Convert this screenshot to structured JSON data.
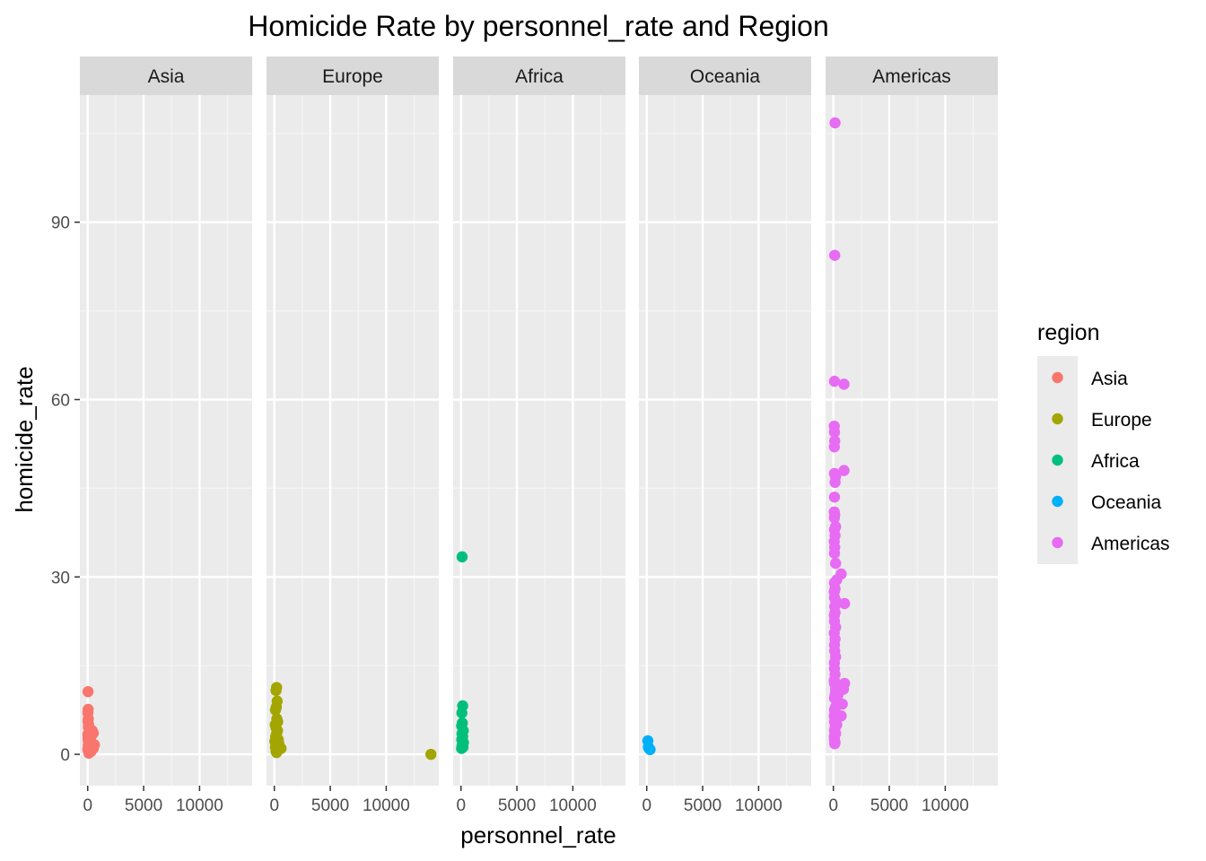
{
  "chart_data": {
    "type": "scatter",
    "title": "Homicide Rate by personnel_rate and Region",
    "xlabel": "personnel_rate",
    "ylabel": "homicide_rate",
    "xlim": [
      -700,
      14700
    ],
    "ylim": [
      -5.3,
      111.5
    ],
    "x_ticks": [
      0,
      5000,
      10000
    ],
    "x_tick_labels": [
      "0",
      "5000",
      "10000"
    ],
    "y_ticks": [
      0,
      30,
      60,
      90
    ],
    "y_tick_labels": [
      "0",
      "30",
      "60",
      "90"
    ],
    "grid": true,
    "facet_by": "region",
    "legend": {
      "title": "region",
      "position": "right"
    },
    "facets": [
      {
        "name": "Asia",
        "color": "#F8766D",
        "points": [
          [
            30,
            10.6
          ],
          [
            40,
            7.6
          ],
          [
            20,
            7.0
          ],
          [
            50,
            6.0
          ],
          [
            30,
            5.6
          ],
          [
            80,
            5.0
          ],
          [
            400,
            4.0
          ],
          [
            500,
            3.6
          ],
          [
            60,
            4.6
          ],
          [
            20,
            3.4
          ],
          [
            300,
            3.0
          ],
          [
            100,
            2.6
          ],
          [
            200,
            2.0
          ],
          [
            600,
            1.6
          ],
          [
            500,
            1.0
          ],
          [
            40,
            2.4
          ],
          [
            80,
            1.2
          ],
          [
            10,
            0.8
          ],
          [
            300,
            0.5
          ],
          [
            150,
            0.3
          ],
          [
            50,
            1.5
          ],
          [
            200,
            4.2
          ],
          [
            30,
            2.8
          ],
          [
            100,
            0.2
          ]
        ]
      },
      {
        "name": "Europe",
        "color": "#A3A500",
        "points": [
          [
            200,
            11.3
          ],
          [
            150,
            10.8
          ],
          [
            250,
            9.0
          ],
          [
            180,
            8.0
          ],
          [
            100,
            7.5
          ],
          [
            220,
            6.0
          ],
          [
            300,
            5.5
          ],
          [
            80,
            5.0
          ],
          [
            150,
            4.5
          ],
          [
            280,
            4.0
          ],
          [
            200,
            3.5
          ],
          [
            120,
            3.0
          ],
          [
            350,
            2.5
          ],
          [
            180,
            2.0
          ],
          [
            250,
            1.5
          ],
          [
            600,
            1.0
          ],
          [
            300,
            0.8
          ],
          [
            150,
            0.5
          ],
          [
            200,
            0.3
          ],
          [
            100,
            1.2
          ],
          [
            400,
            1.8
          ],
          [
            50,
            2.2
          ],
          [
            14000,
            0.0
          ]
        ]
      },
      {
        "name": "Africa",
        "color": "#00BF7D",
        "points": [
          [
            100,
            33.4
          ],
          [
            150,
            8.2
          ],
          [
            80,
            7.0
          ],
          [
            120,
            5.3
          ],
          [
            60,
            4.8
          ],
          [
            200,
            4.0
          ],
          [
            90,
            3.5
          ],
          [
            150,
            3.0
          ],
          [
            70,
            2.5
          ],
          [
            220,
            2.0
          ],
          [
            100,
            1.5
          ],
          [
            180,
            1.2
          ],
          [
            50,
            1.0
          ]
        ]
      },
      {
        "name": "Oceania",
        "color": "#00B0F6",
        "points": [
          [
            100,
            2.3
          ],
          [
            200,
            1.0
          ],
          [
            300,
            0.8
          ],
          [
            150,
            1.2
          ]
        ]
      },
      {
        "name": "Americas",
        "color": "#E76BF3",
        "points": [
          [
            150,
            106.8
          ],
          [
            120,
            84.4
          ],
          [
            100,
            63.1
          ],
          [
            950,
            62.6
          ],
          [
            80,
            55.5
          ],
          [
            100,
            54.5
          ],
          [
            120,
            53.0
          ],
          [
            90,
            52.0
          ],
          [
            950,
            48.0
          ],
          [
            100,
            47.5
          ],
          [
            200,
            47.0
          ],
          [
            150,
            46.0
          ],
          [
            100,
            43.5
          ],
          [
            80,
            41.0
          ],
          [
            120,
            40.5
          ],
          [
            90,
            40.0
          ],
          [
            200,
            38.5
          ],
          [
            100,
            38.0
          ],
          [
            150,
            37.0
          ],
          [
            80,
            36.0
          ],
          [
            120,
            35.0
          ],
          [
            100,
            34.0
          ],
          [
            200,
            32.3
          ],
          [
            700,
            30.5
          ],
          [
            300,
            29.5
          ],
          [
            100,
            29.0
          ],
          [
            150,
            28.0
          ],
          [
            80,
            27.5
          ],
          [
            100,
            26.5
          ],
          [
            200,
            26.0
          ],
          [
            1000,
            25.5
          ],
          [
            120,
            25.0
          ],
          [
            150,
            24.0
          ],
          [
            90,
            23.5
          ],
          [
            100,
            22.5
          ],
          [
            200,
            21.5
          ],
          [
            80,
            20.5
          ],
          [
            150,
            19.5
          ],
          [
            100,
            18.5
          ],
          [
            120,
            17.5
          ],
          [
            200,
            16.5
          ],
          [
            90,
            15.5
          ],
          [
            100,
            14.5
          ],
          [
            150,
            13.5
          ],
          [
            80,
            12.5
          ],
          [
            100,
            12.0
          ],
          [
            1000,
            12.0
          ],
          [
            900,
            11.0
          ],
          [
            200,
            11.0
          ],
          [
            150,
            10.0
          ],
          [
            100,
            9.5
          ],
          [
            300,
            9.0
          ],
          [
            200,
            8.0
          ],
          [
            800,
            8.5
          ],
          [
            100,
            7.5
          ],
          [
            150,
            7.0
          ],
          [
            80,
            6.5
          ],
          [
            700,
            6.5
          ],
          [
            200,
            6.0
          ],
          [
            100,
            5.5
          ],
          [
            300,
            5.0
          ],
          [
            150,
            4.5
          ],
          [
            100,
            4.0
          ],
          [
            200,
            3.5
          ],
          [
            80,
            3.0
          ],
          [
            100,
            2.5
          ],
          [
            150,
            2.0
          ],
          [
            120,
            1.8
          ],
          [
            200,
            10.5
          ],
          [
            400,
            10.0
          ]
        ]
      }
    ]
  }
}
